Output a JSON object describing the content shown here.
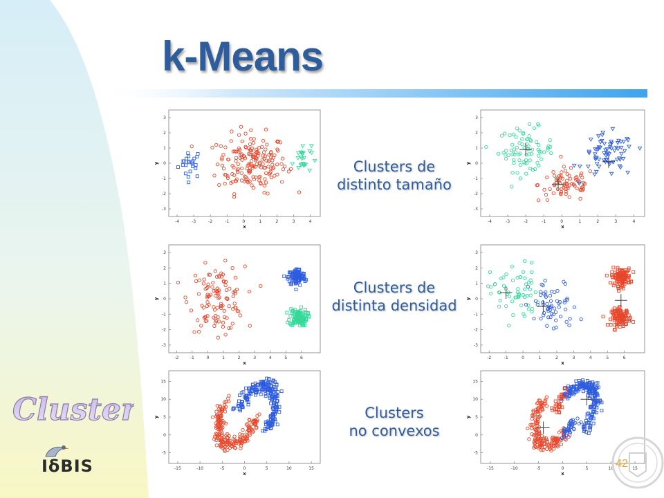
{
  "slide": {
    "title": "k-Means",
    "side_word": "Clustering",
    "brand": "IδBIS",
    "page_number": "42"
  },
  "captions": [
    {
      "line1": "Clusters de",
      "line2": "distinto tamaño"
    },
    {
      "line1": "Clusters de",
      "line2": "distinta densidad"
    },
    {
      "line1": "Clusters",
      "line2": "no convexos"
    }
  ],
  "colors": {
    "title": "#2f5d9c",
    "red": "#e8472b",
    "blue": "#2e5ce0",
    "green": "#35d99a",
    "sidebar_light": "#e7f5fb",
    "sidebar_yellow": "#f6f8c9"
  },
  "chart_data": [
    {
      "type": "scatter",
      "row": "size",
      "panel": "original",
      "xlabel": "x",
      "ylabel": "y",
      "xticks": [
        "-4",
        "-3",
        "-2",
        "-1",
        "0",
        "1",
        "2",
        "3",
        "4"
      ],
      "yticks": [
        "3",
        "2",
        "1",
        "0",
        "-1",
        "-2",
        "-3"
      ],
      "xlim": [
        -4.5,
        4.6
      ],
      "ylim": [
        -3.5,
        3.5
      ],
      "series": [
        {
          "color": "blue",
          "marker": "square",
          "cx": -3.2,
          "cy": 0,
          "sx": 0.45,
          "sy": 0.6,
          "n": 24
        },
        {
          "color": "red",
          "marker": "circle",
          "cx": 0.5,
          "cy": 0,
          "sx": 1.3,
          "sy": 1.2,
          "n": 190
        },
        {
          "color": "green",
          "marker": "triangle",
          "cx": 3.5,
          "cy": 0.3,
          "sx": 0.35,
          "sy": 0.6,
          "n": 24
        }
      ]
    },
    {
      "type": "scatter",
      "row": "size",
      "panel": "kmeans",
      "xlabel": "x",
      "ylabel": "y",
      "xticks": [
        "-4",
        "-3",
        "-2",
        "-1",
        "0",
        "1",
        "2",
        "3",
        "4"
      ],
      "yticks": [
        "3",
        "2",
        "1",
        "0",
        "-1",
        "-2",
        "-3"
      ],
      "xlim": [
        -4.5,
        4.6
      ],
      "ylim": [
        -3.5,
        3.5
      ],
      "series": [
        {
          "color": "green",
          "marker": "circle",
          "cx": -2.0,
          "cy": 0.9,
          "sx": 0.95,
          "sy": 0.9,
          "n": 80
        },
        {
          "color": "red",
          "marker": "circle",
          "cx": 0.3,
          "cy": -1.4,
          "sx": 1.0,
          "sy": 0.7,
          "n": 75
        },
        {
          "color": "blue",
          "marker": "triangle",
          "cx": 2.6,
          "cy": 0.5,
          "sx": 0.9,
          "sy": 0.9,
          "n": 70
        }
      ],
      "centroids": [
        [
          -2.0,
          0.9
        ],
        [
          -0.2,
          -1.4
        ],
        [
          2.6,
          0.1
        ]
      ]
    },
    {
      "type": "scatter",
      "row": "density",
      "panel": "original",
      "xlabel": "x",
      "ylabel": "y",
      "xticks": [
        "-2",
        "-1",
        "0",
        "1",
        "2",
        "3",
        "4",
        "5",
        "6"
      ],
      "yticks": [
        "3",
        "2",
        "1",
        "0",
        "-1",
        "-2",
        "-3"
      ],
      "xlim": [
        -2.5,
        7.2
      ],
      "ylim": [
        -3.5,
        3.5
      ],
      "series": [
        {
          "color": "red",
          "marker": "circle",
          "cx": 0.6,
          "cy": 0,
          "sx": 1.1,
          "sy": 1.3,
          "n": 115
        },
        {
          "color": "blue",
          "marker": "square",
          "cx": 5.7,
          "cy": 1.4,
          "sx": 0.35,
          "sy": 0.35,
          "n": 110
        },
        {
          "color": "green",
          "marker": "square",
          "cx": 5.8,
          "cy": -1.2,
          "sx": 0.35,
          "sy": 0.35,
          "n": 110
        }
      ]
    },
    {
      "type": "scatter",
      "row": "density",
      "panel": "kmeans",
      "xlabel": "x",
      "ylabel": "y",
      "xticks": [
        "-2",
        "-1",
        "0",
        "1",
        "2",
        "3",
        "4",
        "5",
        "6"
      ],
      "yticks": [
        "3",
        "2",
        "1",
        "0",
        "-1",
        "-2",
        "-3"
      ],
      "xlim": [
        -2.5,
        7.2
      ],
      "ylim": [
        -3.5,
        3.5
      ],
      "series": [
        {
          "color": "green",
          "marker": "circle",
          "cx": -0.5,
          "cy": 0.4,
          "sx": 0.9,
          "sy": 1.2,
          "n": 60
        },
        {
          "color": "blue",
          "marker": "circle",
          "cx": 1.8,
          "cy": -0.5,
          "sx": 0.9,
          "sy": 1.1,
          "n": 60
        },
        {
          "color": "red",
          "marker": "square",
          "cx": 5.8,
          "cy": 1.4,
          "sx": 0.35,
          "sy": 0.35,
          "n": 110
        },
        {
          "color": "red",
          "marker": "square",
          "cx": 5.8,
          "cy": -1.2,
          "sx": 0.35,
          "sy": 0.35,
          "n": 110
        }
      ],
      "centroids": [
        [
          -1.0,
          0.4
        ],
        [
          1.2,
          -0.5
        ],
        [
          5.8,
          -0.1
        ]
      ]
    },
    {
      "type": "scatter",
      "row": "nonconvex",
      "panel": "original",
      "xlabel": "x",
      "ylabel": "y",
      "xticks": [
        "-15",
        "-10",
        "-5",
        "0",
        "5",
        "10",
        "15"
      ],
      "yticks": [
        "15",
        "10",
        "5",
        "0",
        "-5"
      ],
      "xlim": [
        -17,
        17
      ],
      "ylim": [
        -8,
        18
      ],
      "series": [
        {
          "color": "blue",
          "marker": "square",
          "shape": "arc-upper",
          "n": 220
        },
        {
          "color": "red",
          "marker": "circle",
          "shape": "arc-lower",
          "n": 220
        }
      ]
    },
    {
      "type": "scatter",
      "row": "nonconvex",
      "panel": "kmeans",
      "xlabel": "x",
      "ylabel": "y",
      "xticks": [
        "-15",
        "-10",
        "-5",
        "0",
        "5",
        "10",
        "15"
      ],
      "yticks": [
        "15",
        "10",
        "5",
        "0",
        "-5"
      ],
      "xlim": [
        -17,
        17
      ],
      "ylim": [
        -8,
        18
      ],
      "series": [
        {
          "color": "blue",
          "marker": "square",
          "shape": "arc-upper-split",
          "n": 220
        },
        {
          "color": "red",
          "marker": "circle",
          "shape": "arc-lower-split",
          "n": 220
        }
      ],
      "centroids": [
        [
          -4,
          2
        ],
        [
          5,
          10
        ]
      ]
    }
  ]
}
